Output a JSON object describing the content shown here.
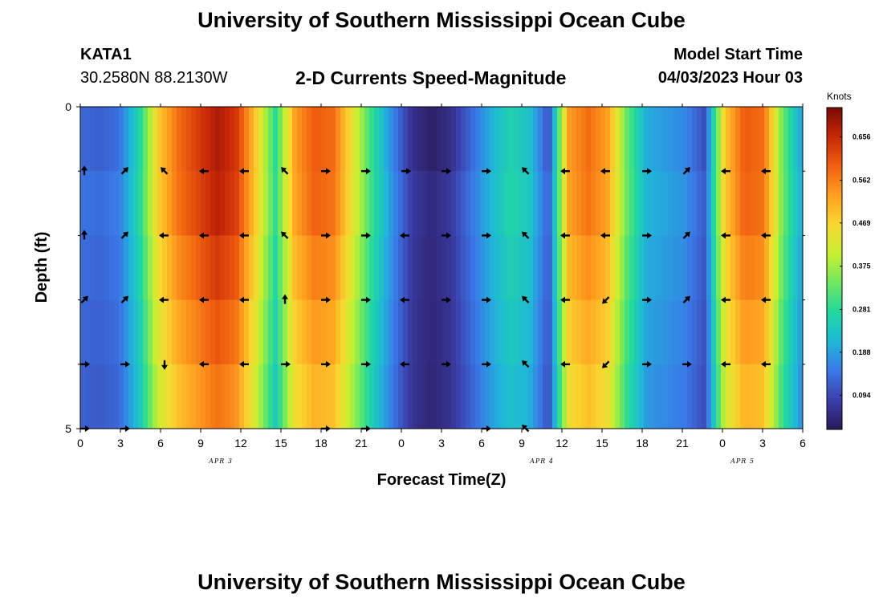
{
  "header": {
    "title_top": "University of Southern Mississippi Ocean Cube",
    "station_id": "KATA1",
    "location": "30.2580N  88.2130W",
    "chart_title": "2-D Currents Speed-Magnitude",
    "model_label": "Model Start Time",
    "model_time": "04/03/2023 Hour 03",
    "title_bottom": "University of Southern Mississippi Ocean Cube"
  },
  "chart_data": {
    "type": "heatmap",
    "title": "2-D Currents Speed-Magnitude",
    "xlabel": "Forecast Time(Z)",
    "ylabel": "Depth (ft)",
    "x_ticks": [
      "0",
      "3",
      "6",
      "9",
      "12",
      "15",
      "18",
      "21",
      "0",
      "3",
      "6",
      "9",
      "12",
      "15",
      "18",
      "21",
      "0",
      "3",
      "6"
    ],
    "y_ticks": [
      "0",
      "5"
    ],
    "ylim": [
      0,
      5
    ],
    "date_labels": [
      {
        "label": "APR 3",
        "tick_index": 3.5
      },
      {
        "label": "APR 4",
        "tick_index": 11.5
      },
      {
        "label": "APR 5",
        "tick_index": 16.5
      }
    ],
    "colorbar": {
      "label": "Knots",
      "ticks": [
        0.656,
        0.562,
        0.469,
        0.375,
        0.281,
        0.188,
        0.094
      ],
      "range": [
        0.02,
        0.72
      ],
      "colors": [
        "#2a1a5a",
        "#3b3ea8",
        "#3a78e8",
        "#1fb8d8",
        "#20d8a0",
        "#6ee860",
        "#c8f030",
        "#f8d830",
        "#ffa020",
        "#f06010",
        "#c82808",
        "#7a0a04"
      ]
    },
    "speed_profile_knots": [
      0.15,
      0.14,
      0.16,
      0.28,
      0.5,
      0.6,
      0.65,
      0.7,
      0.66,
      0.5,
      0.3,
      0.55,
      0.62,
      0.6,
      0.45,
      0.3,
      0.18,
      0.08,
      0.05,
      0.08,
      0.15,
      0.22,
      0.28,
      0.25,
      0.12,
      0.55,
      0.6,
      0.55,
      0.35,
      0.22,
      0.2,
      0.18,
      0.12,
      0.5,
      0.62,
      0.6,
      0.35,
      0.2
    ],
    "depth_rows": 5,
    "arrow_rows": [
      {
        "depth": 1,
        "dirs": [
          "N",
          "NE",
          "NW",
          "W",
          "W",
          "NW",
          "E",
          "E",
          "E",
          "E",
          "E",
          "NW",
          "W",
          "W",
          "E",
          "NE",
          "W",
          "W"
        ]
      },
      {
        "depth": 2,
        "dirs": [
          "N",
          "NE",
          "W",
          "W",
          "W",
          "NW",
          "E",
          "E",
          "W",
          "E",
          "E",
          "NW",
          "W",
          "W",
          "E",
          "NE",
          "W",
          "W"
        ]
      },
      {
        "depth": 3,
        "dirs": [
          "NE",
          "NE",
          "W",
          "W",
          "W",
          "N",
          "E",
          "E",
          "W",
          "E",
          "E",
          "NW",
          "W",
          "SW",
          "E",
          "NE",
          "W",
          "W"
        ]
      },
      {
        "depth": 4,
        "dirs": [
          "E",
          "E",
          "S",
          "W",
          "W",
          "E",
          "E",
          "E",
          "W",
          "E",
          "E",
          "NW",
          "W",
          "SW",
          "E",
          "E",
          "W",
          "W"
        ]
      },
      {
        "depth": 5,
        "dirs": [
          "E",
          "E",
          "",
          "",
          "",
          "",
          "E",
          "E",
          "",
          "",
          "E",
          "NW",
          "",
          "",
          "",
          "",
          "",
          ""
        ]
      }
    ]
  }
}
